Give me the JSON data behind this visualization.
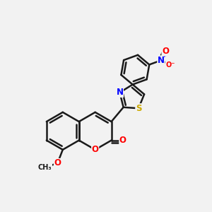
{
  "bg_color": "#f2f2f2",
  "bond_color": "#1a1a1a",
  "bond_width": 1.8,
  "atom_colors": {
    "O": "#ff0000",
    "N": "#0000ff",
    "S": "#ccaa00",
    "C": "#1a1a1a"
  },
  "font_size": 8.5,
  "figsize": [
    3.0,
    3.0
  ],
  "dpi": 100
}
